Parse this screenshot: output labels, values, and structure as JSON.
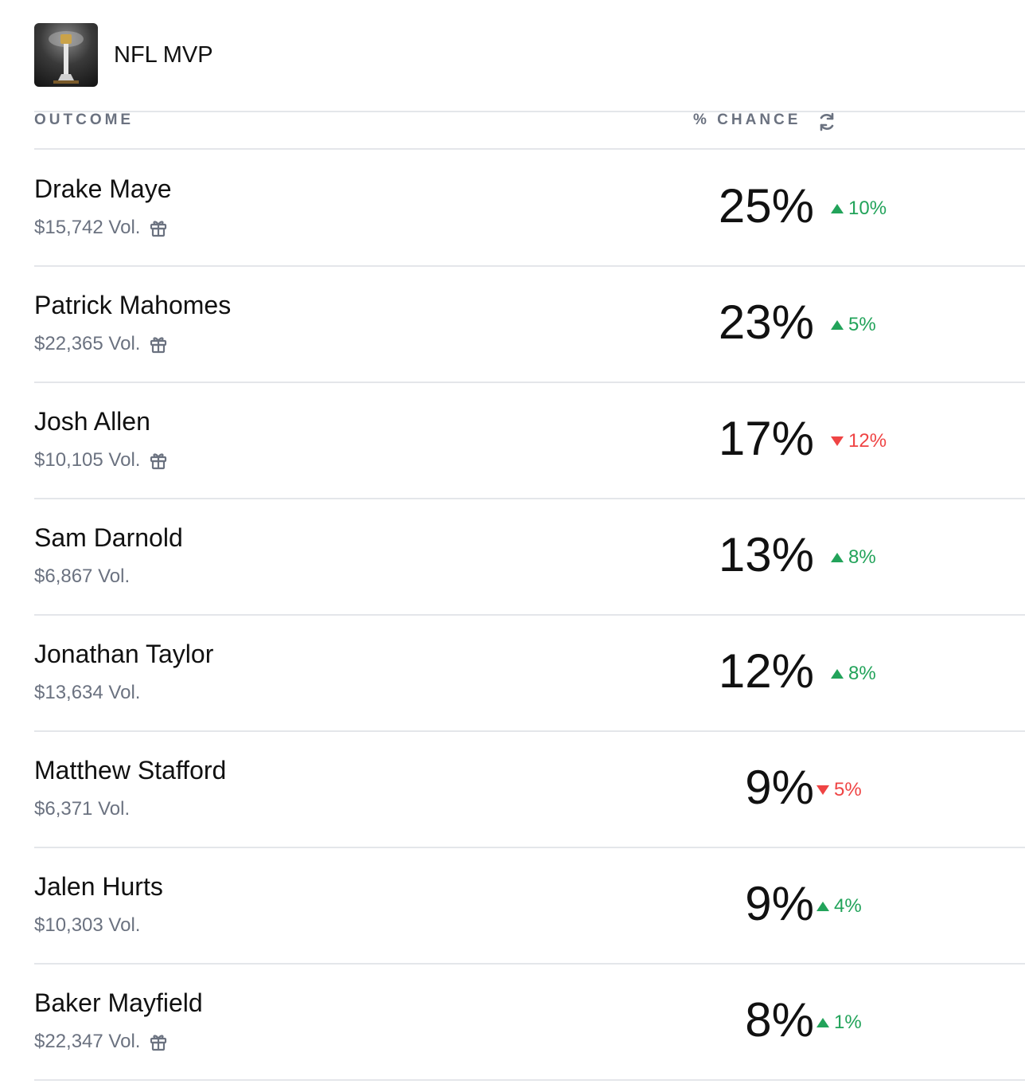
{
  "market": {
    "title": "NFL MVP"
  },
  "columns": {
    "outcome": "OUTCOME",
    "chance": "% CHANCE"
  },
  "outcomes": [
    {
      "name": "Drake Maye",
      "volume": "$15,742 Vol.",
      "chance": "25%",
      "change": "10%",
      "direction": "up",
      "gift": true
    },
    {
      "name": "Patrick Mahomes",
      "volume": "$22,365 Vol.",
      "chance": "23%",
      "change": "5%",
      "direction": "up",
      "gift": true
    },
    {
      "name": "Josh Allen",
      "volume": "$10,105 Vol.",
      "chance": "17%",
      "change": "12%",
      "direction": "down",
      "gift": true
    },
    {
      "name": "Sam Darnold",
      "volume": "$6,867 Vol.",
      "chance": "13%",
      "change": "8%",
      "direction": "up",
      "gift": false
    },
    {
      "name": "Jonathan Taylor",
      "volume": "$13,634 Vol.",
      "chance": "12%",
      "change": "8%",
      "direction": "up",
      "gift": false
    },
    {
      "name": "Matthew Stafford",
      "volume": "$6,371 Vol.",
      "chance": "9%",
      "change": "5%",
      "direction": "down",
      "gift": false
    },
    {
      "name": "Jalen Hurts",
      "volume": "$10,303 Vol.",
      "chance": "9%",
      "change": "4%",
      "direction": "up",
      "gift": false
    },
    {
      "name": "Baker Mayfield",
      "volume": "$22,347 Vol.",
      "chance": "8%",
      "change": "1%",
      "direction": "up",
      "gift": true
    }
  ],
  "colors": {
    "up": "#22a35a",
    "down": "#ef4444",
    "muted": "#6b7280",
    "divider": "#e4e6ea"
  },
  "icons": {
    "refresh": "refresh-icon",
    "gift": "gift-icon",
    "market_image": "trophy-image"
  }
}
